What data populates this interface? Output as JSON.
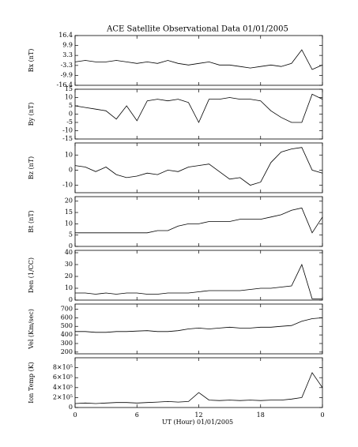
{
  "title": "ACE Satellite Observational Data   01/01/2005",
  "xlabel": "UT (Hour)   01/01/2005",
  "xlim": [
    0,
    24
  ],
  "xticks": [
    0,
    6,
    12,
    18,
    {
      "value": 24,
      "label": "0"
    }
  ],
  "x": [
    0,
    1,
    2,
    3,
    4,
    5,
    6,
    7,
    8,
    9,
    10,
    11,
    12,
    13,
    14,
    15,
    16,
    17,
    18,
    19,
    20,
    21,
    22,
    23,
    24
  ],
  "chart_data": [
    {
      "type": "line",
      "ylabel": "Bx (nT)",
      "ylim": [
        -16.4,
        16.4
      ],
      "yticks": [
        -16.4,
        -9.9,
        -3.3,
        3.3,
        9.9,
        16.4
      ],
      "values": [
        -1,
        0,
        -1,
        -1,
        0,
        -1,
        -2,
        -1,
        -2,
        0,
        -2,
        -3,
        -2,
        -1,
        -3,
        -3,
        -4,
        -5,
        -4,
        -3,
        -4,
        -2,
        7,
        -6,
        -3
      ]
    },
    {
      "type": "line",
      "ylabel": "By (nT)",
      "ylim": [
        -15,
        15
      ],
      "yticks": [
        -15,
        -10,
        -5,
        0,
        5,
        10,
        15
      ],
      "values": [
        5,
        4,
        3,
        2,
        -3,
        5,
        -4,
        8,
        9,
        8,
        9,
        7,
        -5,
        9,
        9,
        10,
        9,
        9,
        8,
        2,
        -2,
        -5,
        -5,
        12,
        9
      ]
    },
    {
      "type": "line",
      "ylabel": "Bz (nT)",
      "ylim": [
        -15,
        18
      ],
      "yticks": [
        -10,
        0,
        10
      ],
      "values": [
        3,
        2,
        -1,
        2,
        -3,
        -5,
        -4,
        -2,
        -3,
        0,
        -1,
        2,
        3,
        4,
        -1,
        -6,
        -5,
        -10,
        -8,
        5,
        12,
        14,
        15,
        0,
        -2
      ]
    },
    {
      "type": "line",
      "ylabel": "Bt (nT)",
      "ylim": [
        0,
        22
      ],
      "yticks": [
        0,
        5,
        10,
        15,
        20
      ],
      "values": [
        6,
        6,
        6,
        6,
        6,
        6,
        6,
        6,
        7,
        7,
        9,
        10,
        10,
        11,
        11,
        11,
        12,
        12,
        12,
        13,
        14,
        16,
        17,
        6,
        13
      ]
    },
    {
      "type": "line",
      "ylabel": "Den (1/CC)",
      "ylim": [
        0,
        42
      ],
      "yticks": [
        0,
        10,
        20,
        30,
        40
      ],
      "values": [
        6,
        6,
        5,
        6,
        5,
        6,
        6,
        5,
        5,
        6,
        6,
        6,
        7,
        8,
        8,
        8,
        8,
        9,
        10,
        10,
        11,
        12,
        30,
        1,
        1
      ]
    },
    {
      "type": "line",
      "ylabel": "Vel (Km/sec)",
      "ylim": [
        180,
        760
      ],
      "yticks": [
        200,
        300,
        400,
        500,
        600,
        700
      ],
      "values": [
        440,
        440,
        430,
        430,
        440,
        440,
        445,
        450,
        440,
        440,
        450,
        470,
        480,
        470,
        480,
        490,
        480,
        480,
        490,
        490,
        500,
        510,
        560,
        590,
        600
      ]
    },
    {
      "type": "line",
      "ylabel": "Ion Temp (K)",
      "ylim": [
        0,
        1000000
      ],
      "yticks": [
        0,
        {
          "value": 200000,
          "label": "2×10⁵"
        },
        {
          "value": 400000,
          "label": "4×10⁵"
        },
        {
          "value": 600000,
          "label": "6×10⁵"
        },
        {
          "value": 800000,
          "label": "8×10⁵"
        }
      ],
      "values": [
        80000,
        90000,
        80000,
        90000,
        100000,
        100000,
        90000,
        100000,
        110000,
        120000,
        110000,
        120000,
        300000,
        150000,
        140000,
        150000,
        140000,
        150000,
        140000,
        150000,
        150000,
        170000,
        200000,
        700000,
        400000
      ]
    }
  ]
}
